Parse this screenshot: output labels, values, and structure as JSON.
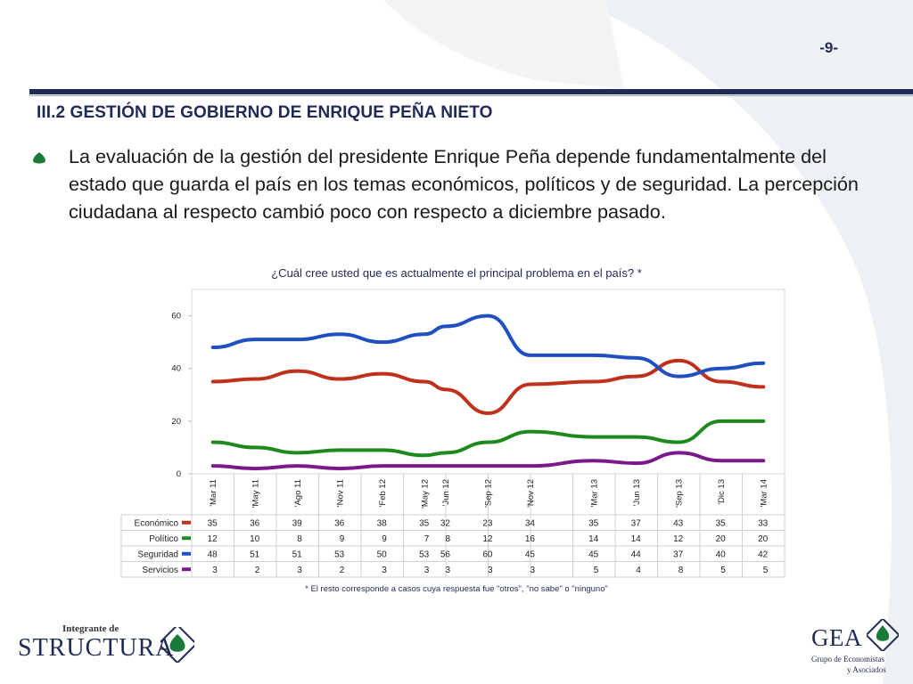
{
  "page_number": "-9-",
  "section_title": "III.2 GESTIÓN DE GOBIERNO DE ENRIQUE PEÑA NIETO",
  "bullet_text": "La evaluación de la gestión del presidente Enrique Peña depende fundamentalmente del estado que guarda el país en los temas económicos, políticos y de seguridad. La percepción ciudadana al respecto cambió poco con respecto a diciembre pasado.",
  "colors": {
    "navy": "#1f2a55",
    "economico": "#c0311d",
    "politico": "#1e8a1e",
    "seguridad": "#1f4fc0",
    "servicios": "#7a1a8a",
    "bullet_green": "#1a7a3a"
  },
  "chart_data": {
    "type": "line",
    "title": "¿Cuál cree usted que es actualmente el principal problema en el país? *",
    "footnote": "* El resto corresponde a casos cuya respuesta fue \"otros\", \"no sabe\" o \"ninguno\"",
    "ylim": [
      0,
      70
    ],
    "yticks": [
      0,
      20,
      40,
      60
    ],
    "categories": [
      "Mar 11",
      "May 11",
      "Ago 11",
      "Nov 11",
      "Feb 12",
      "May 12",
      "Jun 12",
      "Sep 12",
      "Nov 12",
      "Mar 13",
      "Jun 13",
      "Sep 13",
      "Dic 13",
      "Mar 14"
    ],
    "category_labels": [
      "'Mar 11",
      "'May 11",
      "'Ago 11",
      "'Nov 11",
      "'Feb 12",
      "'May 12",
      "'Jun 12",
      "'Sep 12",
      "'Nov 12",
      "'Mar 13",
      "'Jun 13",
      "'Sep 13",
      "'Dic 13",
      "'Mar 14"
    ],
    "x_positions": [
      0,
      1,
      2,
      3,
      4,
      5,
      5.5,
      6.5,
      7.5,
      9,
      10,
      11,
      12,
      13
    ],
    "x_slots": 14,
    "grid": false,
    "legend": "table-below",
    "series": [
      {
        "name": "Económico",
        "color": "#c0311d",
        "values": [
          35,
          36,
          39,
          36,
          38,
          35,
          32,
          23,
          34,
          35,
          37,
          43,
          35,
          33
        ]
      },
      {
        "name": "Político",
        "color": "#1e8a1e",
        "values": [
          12,
          10,
          8,
          9,
          9,
          7,
          8,
          12,
          16,
          14,
          14,
          12,
          20,
          20
        ]
      },
      {
        "name": "Seguridad",
        "color": "#1f4fc0",
        "values": [
          48,
          51,
          51,
          53,
          50,
          53,
          56,
          60,
          45,
          45,
          44,
          37,
          40,
          42
        ]
      },
      {
        "name": "Servicios",
        "color": "#7a1a8a",
        "values": [
          3,
          2,
          3,
          2,
          3,
          3,
          3,
          3,
          3,
          5,
          4,
          8,
          5,
          5
        ]
      }
    ]
  },
  "logos": {
    "structura_top": "Integrante de",
    "structura_word": "STRUCTURA",
    "gea_word": "GEA",
    "gea_line1": "Grupo de Economistas",
    "gea_line2": "y Asociados"
  }
}
